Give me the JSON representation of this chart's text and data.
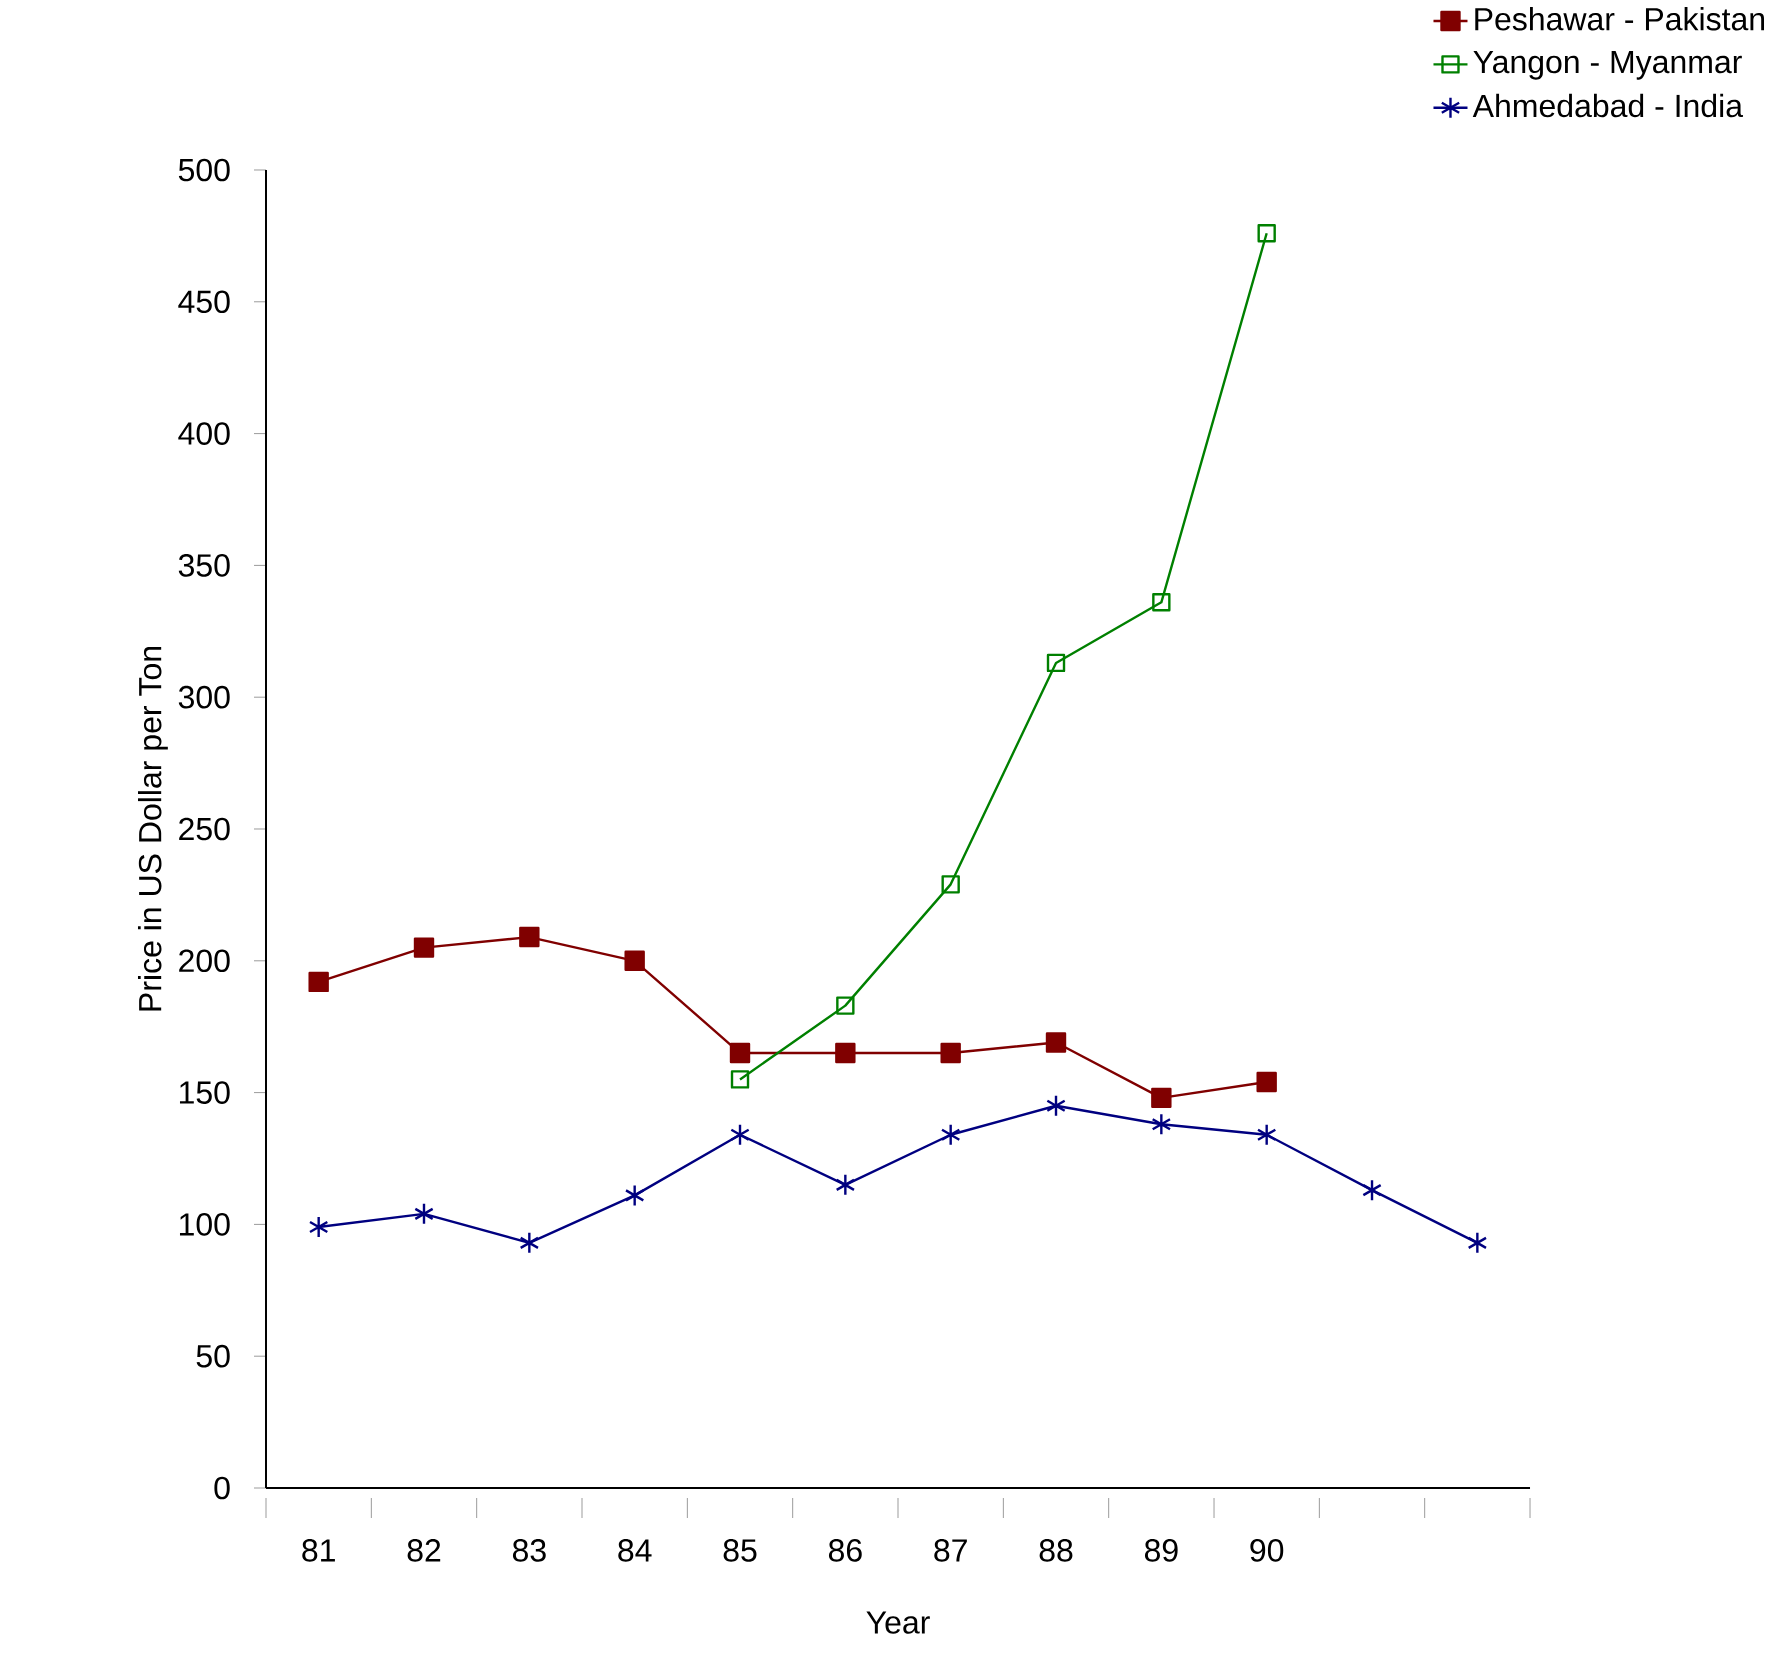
{
  "chart_data": {
    "type": "line",
    "xlabel": "Year",
    "ylabel": "Price in US Dollar per Ton",
    "categories": [
      "81",
      "82",
      "83",
      "84",
      "85",
      "86",
      "87",
      "88",
      "89",
      "90",
      null,
      null
    ],
    "series": [
      {
        "name": "Peshawar - Pakistan",
        "color": "#800000",
        "marker": "square",
        "values": [
          192,
          205,
          209,
          200,
          165,
          165,
          165,
          169,
          148,
          154,
          null,
          null
        ]
      },
      {
        "name": "Yangon - Myanmar",
        "color": "#008000",
        "marker": "square-open",
        "values": [
          null,
          null,
          null,
          null,
          155,
          183,
          229,
          313,
          336,
          476,
          null,
          null
        ]
      },
      {
        "name": "Ahmedabad - India",
        "color": "#000080",
        "marker": "cross",
        "values": [
          99,
          104,
          93,
          111,
          134,
          115,
          134,
          145,
          138,
          134,
          113,
          93
        ]
      }
    ],
    "ylim": [
      0,
      500
    ],
    "yticks": [
      0,
      50,
      100,
      150,
      200,
      250,
      300,
      350,
      400,
      450,
      500
    ],
    "grid": false,
    "legend": "top right"
  }
}
